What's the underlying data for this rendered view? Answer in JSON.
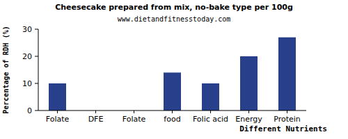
{
  "chart_data": {
    "type": "bar",
    "title": "Cheesecake prepared from mix, no-bake type per 100g",
    "subtitle": "www.dietandfitnesstoday.com",
    "x_label": "Different Nutrients",
    "y_label": "Percentage of RDH (%)",
    "categories": [
      "Folate",
      "DFE",
      "Folate",
      "food",
      "Folic acid",
      "Energy",
      "Protein"
    ],
    "values": [
      10,
      0,
      0,
      14,
      10,
      20,
      27
    ],
    "color": "#283f8c",
    "ylim": [
      0,
      30
    ],
    "yticks": [
      0,
      10,
      20,
      30
    ],
    "grid": false
  }
}
